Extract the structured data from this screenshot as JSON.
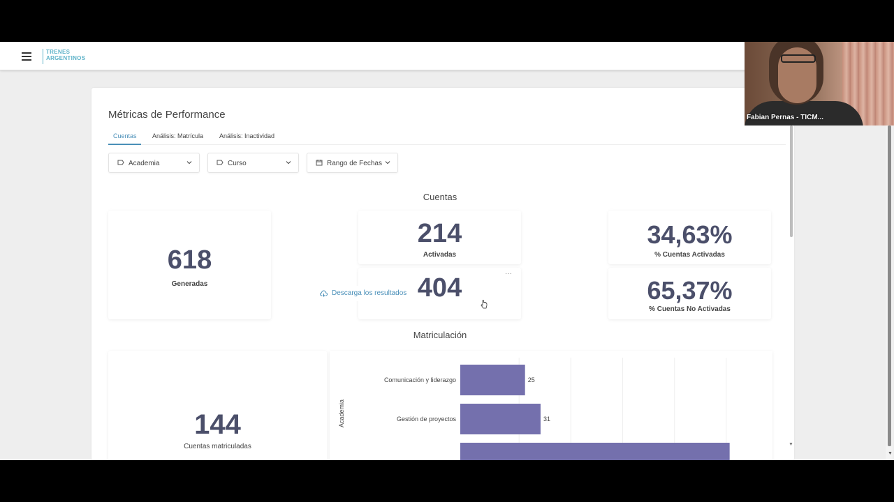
{
  "header": {
    "logo_line1": "TRENES",
    "logo_line2": "ARGENTINOS"
  },
  "page": {
    "title": "Métricas de Performance",
    "tabs": [
      {
        "label": "Cuentas",
        "active": true
      },
      {
        "label": "Análisis: Matrícula",
        "active": false
      },
      {
        "label": "Análisis: Inactividad",
        "active": false
      }
    ]
  },
  "filters": {
    "academia": "Academia",
    "curso": "Curso",
    "rango": "Rango de Fechas"
  },
  "cuentas": {
    "section_title": "Cuentas",
    "generadas": {
      "value": "618",
      "label": "Generadas"
    },
    "activadas": {
      "value": "214",
      "label": "Activadas"
    },
    "no_activadas_partial": "404",
    "pct_activadas": {
      "value": "34,63%",
      "label": "% Cuentas Activadas"
    },
    "pct_no_activadas": {
      "value": "65,37%",
      "label": "% Cuentas No Activadas"
    },
    "download_label": "Descarga los resultados"
  },
  "matriculacion": {
    "section_title": "Matriculación",
    "cuentas_matriculadas": {
      "value": "144",
      "label": "Cuentas matriculadas"
    }
  },
  "chart_data": {
    "type": "bar",
    "orientation": "horizontal",
    "ylabel": "Academia",
    "categories": [
      "Comunicación y liderazgo",
      "Gestión de proyectos"
    ],
    "values": [
      25,
      31
    ],
    "partial_third_value": 104,
    "xlim": [
      0,
      120
    ],
    "grid": true,
    "color": "#7470ad"
  },
  "video": {
    "participant_name": "Fabian Pernas - TICM..."
  },
  "colors": {
    "accent": "#4a8fb8",
    "metric_text": "#4b4f6a",
    "bar": "#7470ad"
  }
}
